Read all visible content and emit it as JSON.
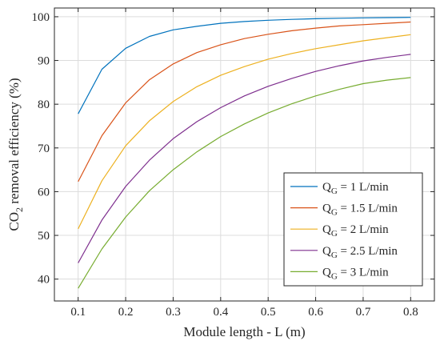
{
  "chart_data": {
    "type": "line",
    "xlabel": "Module length - L (m)",
    "ylabel": "CO₂ removal efficiency (%)",
    "ylabel_parts": {
      "pre": "CO",
      "sub": "2",
      "post": " removal efficiency (%)"
    },
    "xlim": [
      0.05,
      0.85
    ],
    "ylim": [
      35,
      102
    ],
    "xticks": [
      0.1,
      0.2,
      0.3,
      0.4,
      0.5,
      0.6,
      0.7,
      0.8
    ],
    "xtick_labels": [
      "0.1",
      "0.2",
      "0.3",
      "0.4",
      "0.5",
      "0.6",
      "0.7",
      "0.8"
    ],
    "yticks": [
      40,
      50,
      60,
      70,
      80,
      90,
      100
    ],
    "ytick_labels": [
      "40",
      "50",
      "60",
      "70",
      "80",
      "90",
      "100"
    ],
    "grid": true,
    "legend_position": "bottom-right",
    "x": [
      0.1,
      0.15,
      0.2,
      0.25,
      0.3,
      0.35,
      0.4,
      0.45,
      0.5,
      0.55,
      0.6,
      0.65,
      0.7,
      0.75,
      0.8
    ],
    "series": [
      {
        "name": "Q_G = 1 L/min",
        "legend": {
          "pre": "Q",
          "sub": "G",
          "post": " = 1 L/min"
        },
        "color": "#0072BD",
        "values": [
          77.8,
          88.0,
          92.8,
          95.5,
          97.0,
          97.8,
          98.5,
          98.9,
          99.2,
          99.4,
          99.55,
          99.65,
          99.75,
          99.8,
          99.85
        ]
      },
      {
        "name": "Q_G = 1.5 L/min",
        "legend": {
          "pre": "Q",
          "sub": "G",
          "post": " = 1.5 L/min"
        },
        "color": "#D95319",
        "values": [
          62.3,
          72.8,
          80.3,
          85.6,
          89.2,
          91.8,
          93.6,
          95.0,
          96.0,
          96.8,
          97.4,
          97.9,
          98.2,
          98.5,
          98.8
        ]
      },
      {
        "name": "Q_G = 2 L/min",
        "legend": {
          "pre": "Q",
          "sub": "G",
          "post": " = 2 L/min"
        },
        "color": "#EDB120",
        "values": [
          51.5,
          62.5,
          70.5,
          76.2,
          80.6,
          84.0,
          86.6,
          88.6,
          90.3,
          91.6,
          92.7,
          93.6,
          94.5,
          95.2,
          95.9
        ]
      },
      {
        "name": "Q_G = 2.5 L/min",
        "legend": {
          "pre": "Q",
          "sub": "G",
          "post": " = 2.5 L/min"
        },
        "color": "#7E2F8E",
        "values": [
          43.7,
          53.5,
          61.2,
          67.2,
          72.1,
          76.0,
          79.2,
          81.9,
          84.1,
          85.9,
          87.5,
          88.8,
          89.9,
          90.7,
          91.4
        ]
      },
      {
        "name": "Q_G = 3 L/min",
        "legend": {
          "pre": "Q",
          "sub": "G",
          "post": " = 3 L/min"
        },
        "color": "#77AC30",
        "values": [
          37.9,
          46.9,
          54.2,
          60.2,
          65.0,
          69.1,
          72.6,
          75.5,
          78.0,
          80.1,
          81.9,
          83.4,
          84.7,
          85.5,
          86.1
        ]
      }
    ]
  }
}
